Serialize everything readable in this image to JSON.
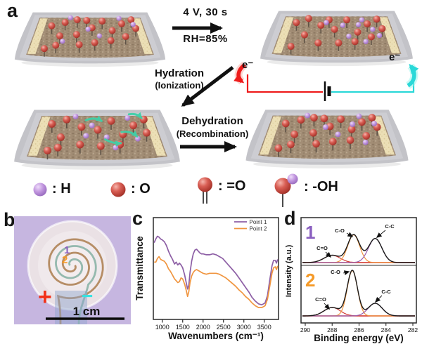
{
  "panel_a": {
    "label": "a",
    "condition_top": "4 V, 30 s",
    "condition_bottom": "RH=85%",
    "hydration": [
      "Hydration",
      "(Ionization)"
    ],
    "dehydration": [
      "Dehydration",
      "(Recombination)"
    ],
    "electron_left": "e⁻",
    "electron_right": "e⁻",
    "legend": [
      {
        "icon": "hydrogen-sphere",
        "label": ": H"
      },
      {
        "icon": "oxygen-sphere",
        "label": ": O"
      },
      {
        "icon": "double-bond-oxygen",
        "label": ": =O"
      },
      {
        "icon": "hydroxyl-group",
        "label": ": -OH"
      }
    ]
  },
  "panel_b": {
    "label": "b",
    "point1": "1",
    "point2": "2",
    "positive": "+",
    "negative": "−",
    "scale_bar": "1 cm"
  },
  "panel_c": {
    "label": "c"
  },
  "panel_d": {
    "label": "d"
  },
  "colors": {
    "wire_positive": "#ee1c1c",
    "wire_negative": "#2ad8d8",
    "point1_accent": "#8a5fc0",
    "point2_accent": "#f59a28",
    "curve_point1": "#8d5fa5",
    "curve_point2": "#f0953f",
    "sphere_oxygen": "#cd4f48",
    "sphere_hydrogen": "#b584d6",
    "ion_arrow_teal": "#3fd0a8",
    "photo_background": "#c6b6e0"
  },
  "chart_data": [
    {
      "panel": "c",
      "type": "line",
      "title": "",
      "xlabel": "Wavenumbers (cm⁻¹)",
      "ylabel": "Transmittance",
      "xlim": [
        780,
        3850
      ],
      "xticks": [
        1000,
        1500,
        2000,
        2500,
        3000,
        3500
      ],
      "grid": false,
      "legend_position": "top-right",
      "series": [
        {
          "name": "Point 1",
          "color": "#8d5fa5",
          "points": [
            [
              800,
              0.79
            ],
            [
              840,
              0.83
            ],
            [
              880,
              0.86
            ],
            [
              920,
              0.85
            ],
            [
              960,
              0.83
            ],
            [
              1000,
              0.82
            ],
            [
              1050,
              0.8
            ],
            [
              1100,
              0.76
            ],
            [
              1150,
              0.7
            ],
            [
              1200,
              0.65
            ],
            [
              1250,
              0.61
            ],
            [
              1300,
              0.56
            ],
            [
              1340,
              0.58
            ],
            [
              1380,
              0.55
            ],
            [
              1420,
              0.57
            ],
            [
              1460,
              0.55
            ],
            [
              1500,
              0.52
            ],
            [
              1550,
              0.44
            ],
            [
              1590,
              0.35
            ],
            [
              1620,
              0.29
            ],
            [
              1650,
              0.33
            ],
            [
              1680,
              0.47
            ],
            [
              1720,
              0.59
            ],
            [
              1760,
              0.67
            ],
            [
              1800,
              0.71
            ],
            [
              1840,
              0.72
            ],
            [
              1880,
              0.7
            ],
            [
              1920,
              0.68
            ],
            [
              1960,
              0.67
            ],
            [
              2000,
              0.67
            ],
            [
              2080,
              0.66
            ],
            [
              2160,
              0.66
            ],
            [
              2240,
              0.67
            ],
            [
              2320,
              0.66
            ],
            [
              2400,
              0.64
            ],
            [
              2480,
              0.62
            ],
            [
              2560,
              0.58
            ],
            [
              2640,
              0.54
            ],
            [
              2720,
              0.5
            ],
            [
              2800,
              0.46
            ],
            [
              2880,
              0.41
            ],
            [
              2960,
              0.36
            ],
            [
              3040,
              0.31
            ],
            [
              3120,
              0.26
            ],
            [
              3200,
              0.2
            ],
            [
              3280,
              0.16
            ],
            [
              3360,
              0.13
            ],
            [
              3440,
              0.12
            ],
            [
              3520,
              0.14
            ],
            [
              3580,
              0.22
            ],
            [
              3640,
              0.4
            ],
            [
              3690,
              0.54
            ],
            [
              3730,
              0.6
            ],
            [
              3770,
              0.6
            ],
            [
              3800,
              0.57
            ],
            [
              3830,
              0.61
            ]
          ]
        },
        {
          "name": "Point 2",
          "color": "#f0953f",
          "points": [
            [
              800,
              0.58
            ],
            [
              840,
              0.58
            ],
            [
              880,
              0.62
            ],
            [
              920,
              0.64
            ],
            [
              960,
              0.61
            ],
            [
              1000,
              0.6
            ],
            [
              1050,
              0.59
            ],
            [
              1100,
              0.56
            ],
            [
              1150,
              0.51
            ],
            [
              1200,
              0.48
            ],
            [
              1250,
              0.44
            ],
            [
              1300,
              0.4
            ],
            [
              1340,
              0.38
            ],
            [
              1380,
              0.36
            ],
            [
              1420,
              0.37
            ],
            [
              1460,
              0.41
            ],
            [
              1500,
              0.4
            ],
            [
              1550,
              0.34
            ],
            [
              1590,
              0.27
            ],
            [
              1620,
              0.21
            ],
            [
              1650,
              0.26
            ],
            [
              1680,
              0.36
            ],
            [
              1720,
              0.43
            ],
            [
              1760,
              0.47
            ],
            [
              1800,
              0.49
            ],
            [
              1840,
              0.5
            ],
            [
              1880,
              0.49
            ],
            [
              1920,
              0.48
            ],
            [
              1960,
              0.47
            ],
            [
              2000,
              0.46
            ],
            [
              2080,
              0.45
            ],
            [
              2160,
              0.46
            ],
            [
              2240,
              0.46
            ],
            [
              2320,
              0.46
            ],
            [
              2400,
              0.45
            ],
            [
              2480,
              0.43
            ],
            [
              2560,
              0.41
            ],
            [
              2640,
              0.38
            ],
            [
              2720,
              0.35
            ],
            [
              2800,
              0.32
            ],
            [
              2880,
              0.28
            ],
            [
              2960,
              0.25
            ],
            [
              3040,
              0.21
            ],
            [
              3120,
              0.18
            ],
            [
              3200,
              0.14
            ],
            [
              3280,
              0.11
            ],
            [
              3360,
              0.09
            ],
            [
              3440,
              0.09
            ],
            [
              3520,
              0.11
            ],
            [
              3580,
              0.18
            ],
            [
              3640,
              0.33
            ],
            [
              3690,
              0.46
            ],
            [
              3730,
              0.52
            ],
            [
              3770,
              0.53
            ],
            [
              3800,
              0.5
            ],
            [
              3830,
              0.54
            ]
          ]
        }
      ]
    },
    {
      "panel": "d",
      "type": "area",
      "subtype": "xps-fitted-peaks",
      "xlabel": "Binding energy (eV)",
      "ylabel": "Intensity (a.u.)",
      "x_reversed": true,
      "xlim": [
        290.4,
        281.8
      ],
      "xticks": [
        290,
        288,
        286,
        284,
        282
      ],
      "panels": [
        {
          "label": "1",
          "label_color": "#8a5fc0",
          "baseline_color": "#d43c35",
          "envelope_color": "#1a1a1a",
          "peaks": [
            {
              "name": "C=O",
              "center": 288.0,
              "amplitude": 0.2,
              "sigma": 0.6,
              "color": "#d43c35"
            },
            {
              "name": "C-O",
              "center": 286.4,
              "amplitude": 0.76,
              "sigma": 0.44,
              "color": "#f0943f"
            },
            {
              "name": "C-C",
              "center": 284.8,
              "amplitude": 0.66,
              "sigma": 0.5,
              "color": "#9a5fae"
            }
          ]
        },
        {
          "label": "2",
          "label_color": "#f59a28",
          "baseline_color": "#d43c35",
          "envelope_color": "#1a1a1a",
          "peaks": [
            {
              "name": "C=O",
              "center": 288.0,
              "amplitude": 0.16,
              "sigma": 0.6,
              "color": "#d43c35"
            },
            {
              "name": "C-O",
              "center": 286.5,
              "amplitude": 0.86,
              "sigma": 0.38,
              "color": "#f0943f"
            },
            {
              "name": "C-C",
              "center": 284.8,
              "amplitude": 0.24,
              "sigma": 0.52,
              "color": "#9a5fae"
            }
          ]
        }
      ]
    }
  ]
}
